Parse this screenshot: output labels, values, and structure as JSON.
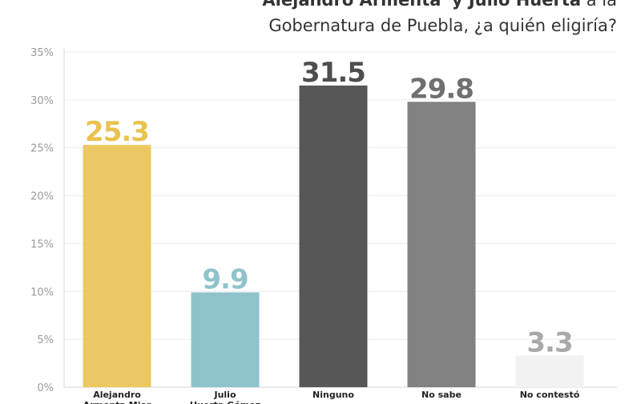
{
  "title": {
    "line1_bold1": "Alejandro Armenta",
    "line1_bold2": "y Julio Huerta",
    "line1_rest": "a la",
    "line2": "Gobernatura de Puebla, ¿a quién eligiría?"
  },
  "chart_data": {
    "type": "bar",
    "categories": [
      [
        "Alejandro",
        "Armenta Mier"
      ],
      [
        "Julio",
        "Huerta Gómez"
      ],
      [
        "Ninguno"
      ],
      [
        "No sabe"
      ],
      [
        "No contestó"
      ]
    ],
    "values": [
      25.3,
      9.9,
      31.5,
      29.8,
      3.3
    ],
    "value_labels": [
      "25.3",
      "9.9",
      "31.5",
      "29.8",
      "3.3"
    ],
    "colors": [
      "#ebc862",
      "#8fc3cb",
      "#575757",
      "#828282",
      "#f2f2f2"
    ],
    "label_colors": [
      "#e9c34f",
      "#8fc3cb",
      "#4e4e4e",
      "#707070",
      "#a9a9a9"
    ],
    "yticks": [
      "0%",
      "5%",
      "10%",
      "15%",
      "20%",
      "25%",
      "30%",
      "35%"
    ],
    "ylim": [
      0,
      35
    ],
    "grid": true
  }
}
